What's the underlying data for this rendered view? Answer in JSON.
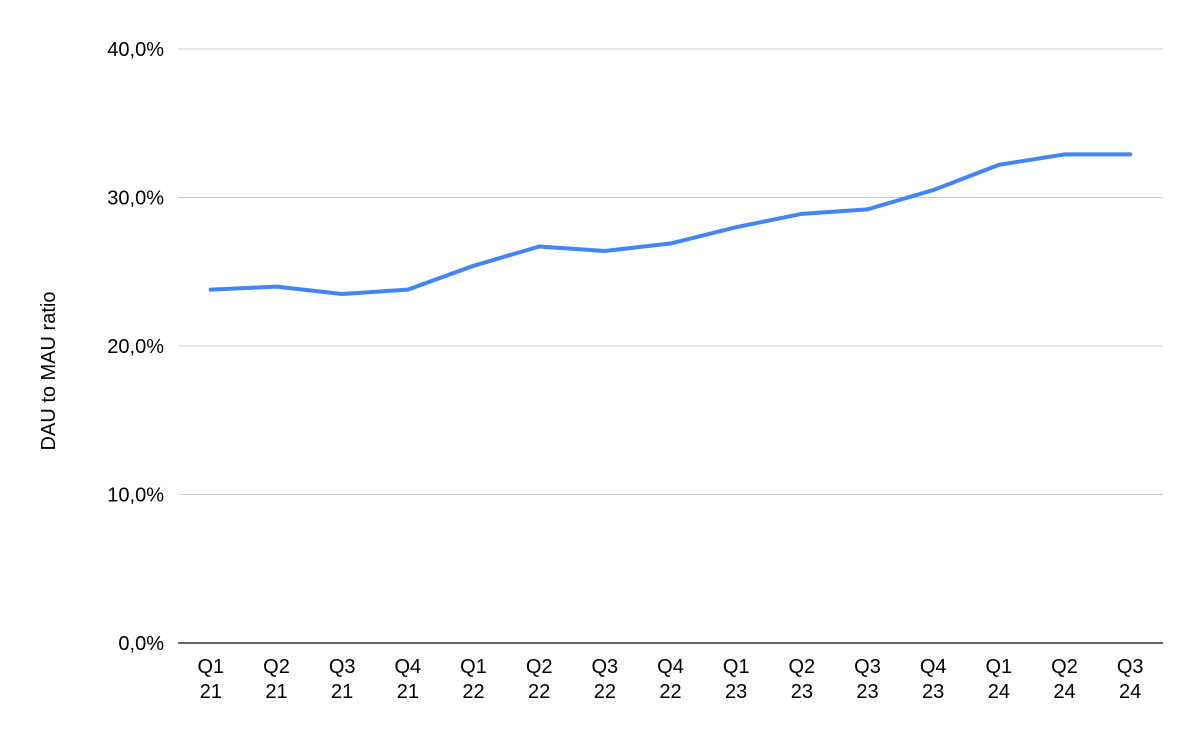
{
  "chart_data": {
    "type": "line",
    "title": "",
    "xlabel": "",
    "ylabel": "DAU to MAU ratio",
    "categories": [
      [
        "Q1",
        "21"
      ],
      [
        "Q2",
        "21"
      ],
      [
        "Q3",
        "21"
      ],
      [
        "Q4",
        "21"
      ],
      [
        "Q1",
        "22"
      ],
      [
        "Q2",
        "22"
      ],
      [
        "Q3",
        "22"
      ],
      [
        "Q4",
        "22"
      ],
      [
        "Q1",
        "23"
      ],
      [
        "Q2",
        "23"
      ],
      [
        "Q3",
        "23"
      ],
      [
        "Q4",
        "23"
      ],
      [
        "Q1",
        "24"
      ],
      [
        "Q2",
        "24"
      ],
      [
        "Q3",
        "24"
      ]
    ],
    "series": [
      {
        "color": "#4285F4",
        "values": [
          23.8,
          24.0,
          23.5,
          23.8,
          25.4,
          26.7,
          26.4,
          26.9,
          28.0,
          28.9,
          29.2,
          30.5,
          32.2,
          32.9,
          32.9
        ]
      }
    ],
    "ylim": [
      0,
      40
    ],
    "yticks": [
      0,
      10,
      20,
      30,
      40
    ],
    "ytick_labels": [
      "0,0%",
      "10,0%",
      "20,0%",
      "30,0%",
      "40,0%"
    ],
    "grid": true,
    "legend": "none",
    "colors": {
      "grid": "#cccccc",
      "axis": "#333333",
      "line": "#4285F4"
    }
  }
}
